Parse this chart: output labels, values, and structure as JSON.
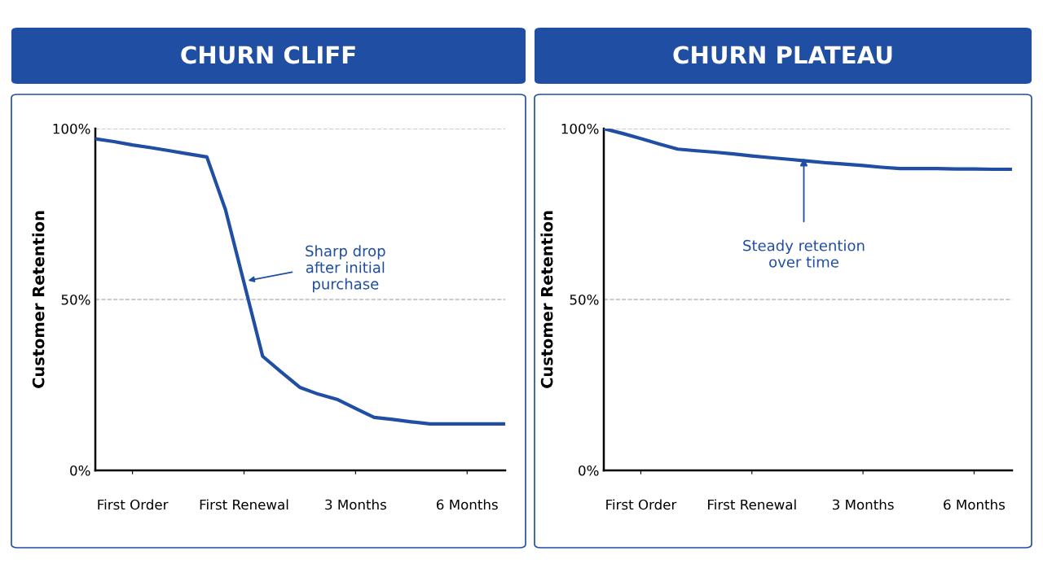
{
  "chart_data": [
    {
      "type": "line",
      "title": "CHURN CLIFF",
      "ylabel": "Customer Retention",
      "color": "#1f4ea3",
      "categories": [
        null,
        null,
        "First Order",
        null,
        null,
        null,
        null,
        null,
        "First Renewal",
        null,
        null,
        null,
        null,
        null,
        "3 Months",
        null,
        null,
        null,
        null,
        null,
        "6 Months",
        null,
        null
      ],
      "values": [
        97,
        96.2,
        95.2,
        94.4,
        93.5,
        92.6,
        91.7,
        76.3,
        54.9,
        33.4,
        28.8,
        24.3,
        22.3,
        20.8,
        18.1,
        15.5,
        14.9,
        14.2,
        13.6,
        13.6,
        13.6,
        13.6,
        13.6
      ],
      "ylim": [
        0,
        100
      ],
      "yticks": [
        {
          "value": 0,
          "label": "0%"
        },
        {
          "value": 50,
          "label": "50%"
        },
        {
          "value": 100,
          "label": "100%"
        }
      ],
      "grid": "y",
      "marker": "none",
      "line_style": "solid",
      "annotations": [
        "Sharp drop\nafter initial\npurchase"
      ]
    },
    {
      "type": "line",
      "title": "CHURN PLATEAU",
      "ylabel": "Customer Retention",
      "color": "#1f4ea3",
      "categories": [
        null,
        null,
        "First Order",
        null,
        null,
        null,
        null,
        null,
        "First Renewal",
        null,
        null,
        null,
        null,
        null,
        "3 Months",
        null,
        null,
        null,
        null,
        null,
        "6 Months",
        null,
        null
      ],
      "values": [
        100,
        98.6,
        97.1,
        95.5,
        94,
        93.5,
        93.1,
        92.6,
        92,
        91.5,
        91,
        90.5,
        90,
        89.6,
        89.2,
        88.7,
        88.3,
        88.3,
        88.3,
        88.2,
        88.2,
        88.1,
        88.1
      ],
      "ylim": [
        0,
        100
      ],
      "yticks": [
        {
          "value": 0,
          "label": "0%"
        },
        {
          "value": 50,
          "label": "50%"
        },
        {
          "value": 100,
          "label": "100%"
        }
      ],
      "grid": "y",
      "marker": "none",
      "line_style": "solid",
      "annotations": [
        {
          "text": "Steady retention\nover time",
          "y": 91.7
        }
      ]
    }
  ]
}
